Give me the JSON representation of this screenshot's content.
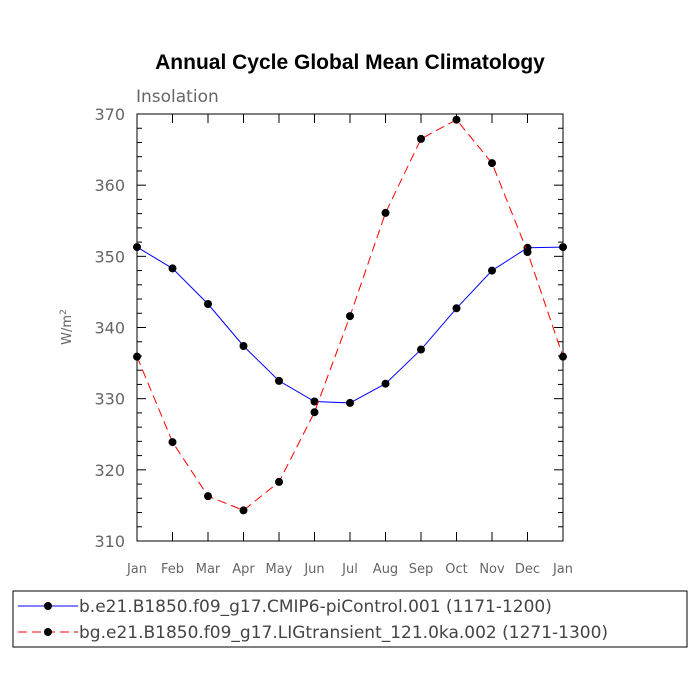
{
  "chart_data": {
    "type": "line",
    "title": "Annual Cycle Global Mean Climatology",
    "subtitle": "Insolation",
    "ylabel_base": "W/m",
    "ylabel_sup": "2",
    "xlabel": "",
    "categories": [
      "Jan",
      "Feb",
      "Mar",
      "Apr",
      "May",
      "Jun",
      "Jul",
      "Aug",
      "Sep",
      "Oct",
      "Nov",
      "Dec",
      "Jan"
    ],
    "ylim": [
      310,
      370
    ],
    "yticks": [
      310,
      320,
      330,
      340,
      350,
      360,
      370
    ],
    "series": [
      {
        "name": "b.e21.B1850.f09_g17.CMIP6-piControl.001 (1171-1200)",
        "color": "#0000ff",
        "dash": "solid",
        "marker": "filled-circle",
        "values": [
          351.3,
          348.3,
          343.3,
          337.4,
          332.5,
          329.6,
          329.4,
          332.1,
          336.9,
          342.7,
          348.0,
          351.2,
          351.3
        ]
      },
      {
        "name": "bg.e21.B1850.f09_g17.LIGtransient_121.0ka.002 (1271-1300)",
        "color": "#ff0000",
        "dash": "dashed",
        "marker": "filled-circle",
        "values": [
          335.9,
          323.9,
          316.3,
          314.3,
          318.3,
          328.1,
          341.6,
          356.1,
          366.5,
          369.2,
          363.1,
          350.6,
          335.9
        ]
      }
    ],
    "grid": false,
    "legend_position": "bottom"
  }
}
